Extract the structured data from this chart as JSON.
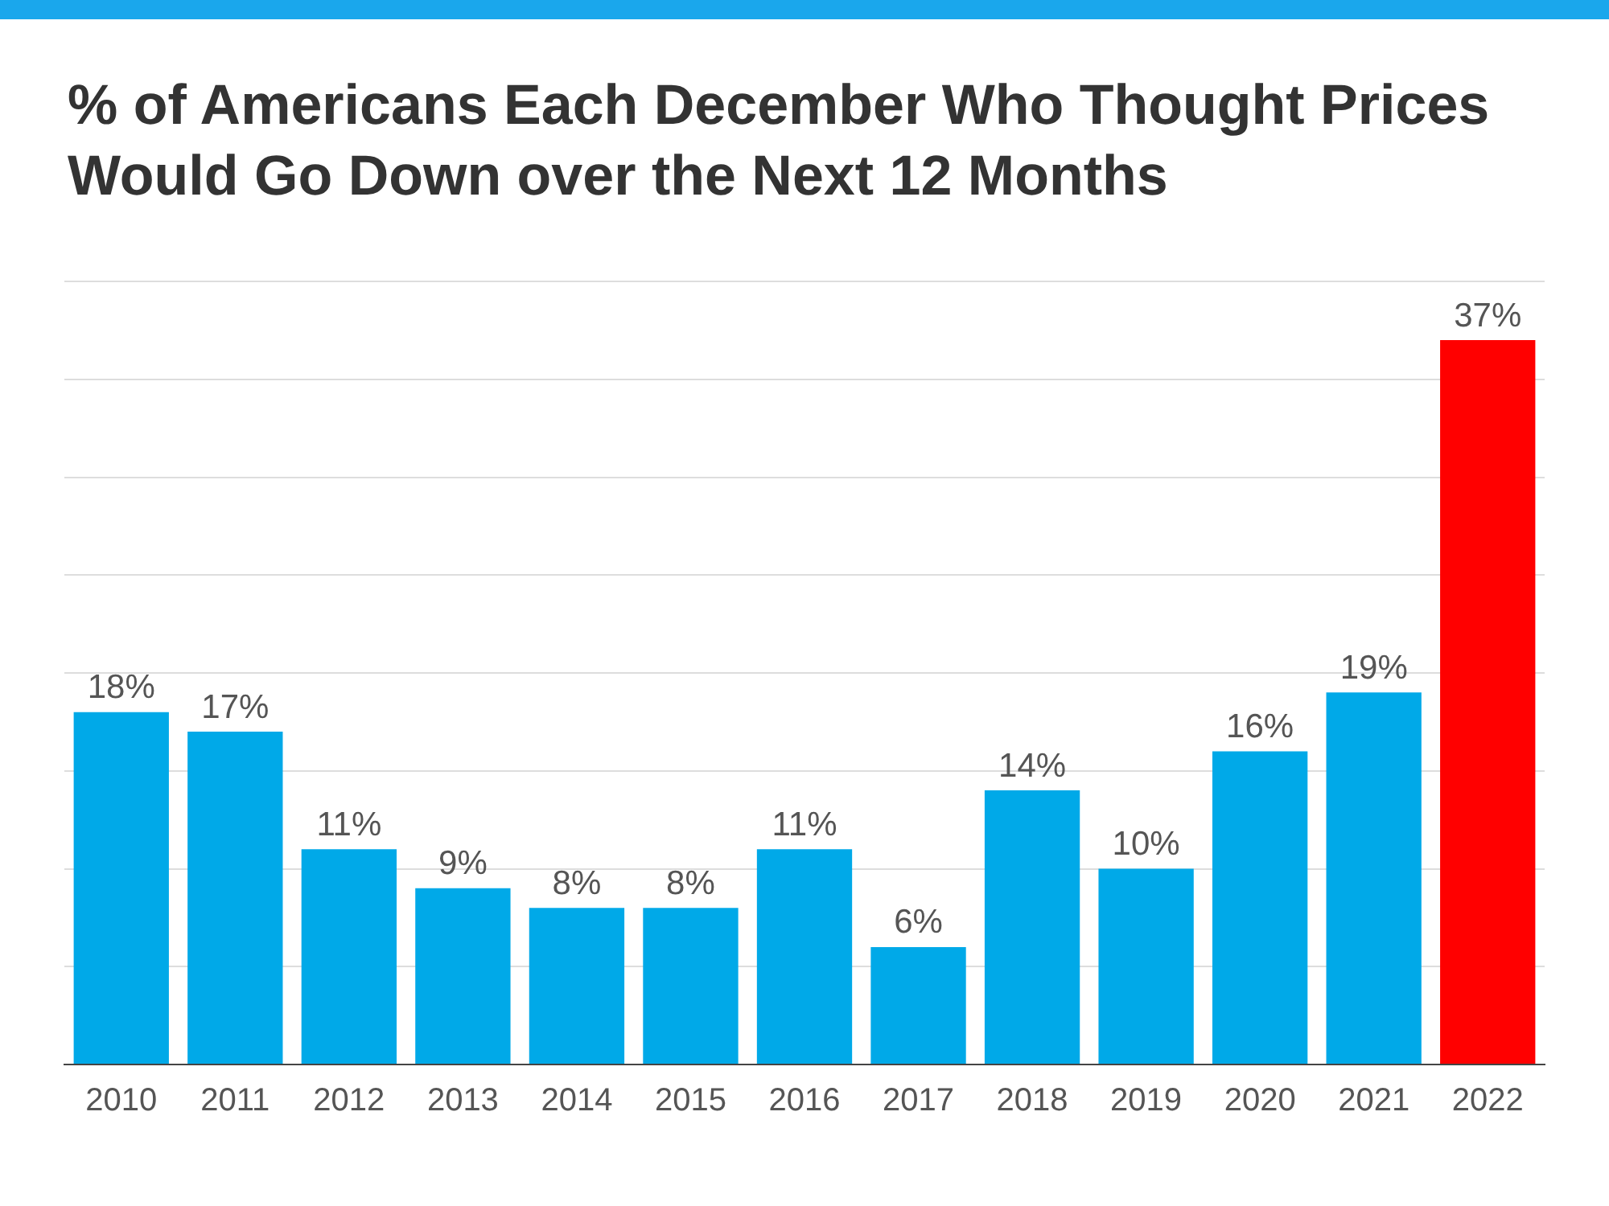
{
  "chart_data": {
    "type": "bar",
    "title": "% of Americans Each December Who Thought Prices Would Go Down over the Next 12 Months",
    "categories": [
      "2010",
      "2011",
      "2012",
      "2013",
      "2014",
      "2015",
      "2016",
      "2017",
      "2018",
      "2019",
      "2020",
      "2021",
      "2022"
    ],
    "values": [
      18,
      17,
      11,
      9,
      8,
      8,
      11,
      6,
      14,
      10,
      16,
      19,
      37
    ],
    "colors": [
      "#00a9e8",
      "#00a9e8",
      "#00a9e8",
      "#00a9e8",
      "#00a9e8",
      "#00a9e8",
      "#00a9e8",
      "#00a9e8",
      "#00a9e8",
      "#00a9e8",
      "#00a9e8",
      "#00a9e8",
      "#ff0000"
    ],
    "value_labels": [
      "18%",
      "17%",
      "11%",
      "9%",
      "8%",
      "8%",
      "11%",
      "6%",
      "14%",
      "10%",
      "16%",
      "19%",
      "37%"
    ],
    "ylim": [
      0,
      40
    ],
    "yticks": [
      {
        "value": 0,
        "label": null
      },
      {
        "value": 5,
        "label": null
      },
      {
        "value": 10,
        "label": null
      },
      {
        "value": 15,
        "label": null
      },
      {
        "value": 20,
        "label": null
      },
      {
        "value": 25,
        "label": null
      },
      {
        "value": 30,
        "label": null
      },
      {
        "value": 35,
        "label": null
      },
      {
        "value": 40,
        "label": null
      }
    ],
    "tick_labels": "x",
    "grid": "y",
    "legend": false
  }
}
